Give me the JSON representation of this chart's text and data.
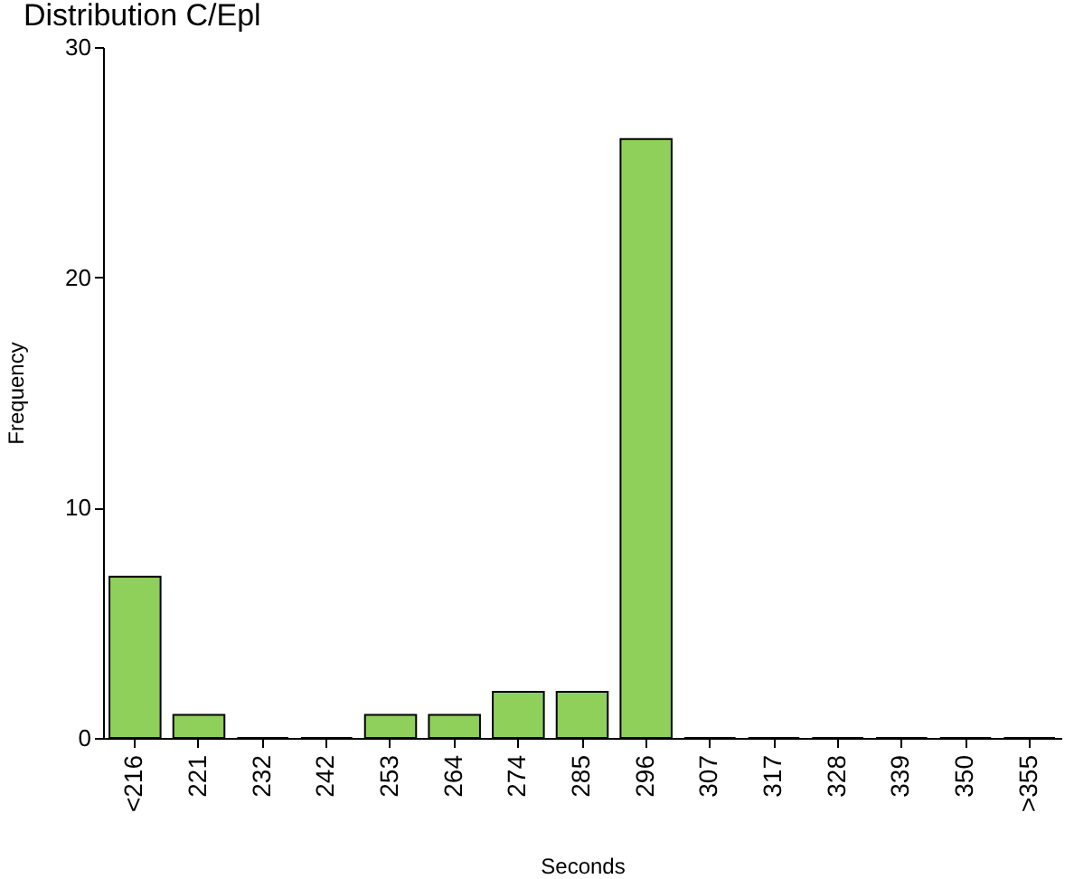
{
  "chart_data": {
    "type": "bar",
    "title": "Distribution C/Epl",
    "xlabel": "Seconds",
    "ylabel": "Frequency",
    "categories": [
      "<216",
      "221",
      "232",
      "242",
      "253",
      "264",
      "274",
      "285",
      "296",
      "307",
      "317",
      "328",
      "339",
      "350",
      ">355"
    ],
    "values": [
      7,
      1,
      0,
      0,
      1,
      1,
      2,
      2,
      26,
      0,
      0,
      0,
      0,
      0,
      0
    ],
    "color": "#8fd05a",
    "ylim": [
      0,
      30
    ],
    "yticks": [
      0,
      10,
      20,
      30
    ],
    "grid": false
  }
}
